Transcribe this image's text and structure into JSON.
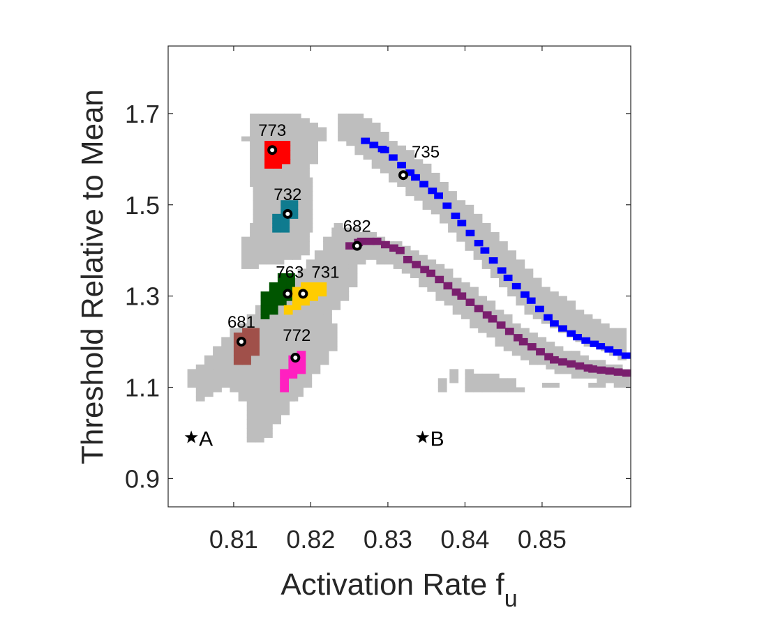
{
  "chart_data": {
    "type": "heatmap",
    "xlabel": "Activation Rate f",
    "xlabel_sub": "u",
    "ylabel": "Threshold Relative to Mean",
    "xlim": [
      0.8015,
      0.8615
    ],
    "ylim": [
      0.838,
      1.848
    ],
    "xticks": [
      "0.81",
      "0.82",
      "0.83",
      "0.84",
      "0.85"
    ],
    "yticks": [
      "0.9",
      "1.1",
      "1.3",
      "1.5",
      "1.7"
    ],
    "colors": {
      "region": "#bebebe",
      "red": "#ff0000",
      "teal": "#0f7b8f",
      "darkgreen": "#005500",
      "gold": "#ffcc00",
      "brown": "#a0504a",
      "pink": "#ff20c0",
      "purple": "#7a1f6e",
      "blue": "#0000ff"
    },
    "labeled_points": [
      {
        "label": "773",
        "x": 0.815,
        "y": 1.62
      },
      {
        "label": "732",
        "x": 0.817,
        "y": 1.48
      },
      {
        "label": "735",
        "x": 0.832,
        "y": 1.565
      },
      {
        "label": "682",
        "x": 0.826,
        "y": 1.41
      },
      {
        "label": "763",
        "x": 0.817,
        "y": 1.305
      },
      {
        "label": "731",
        "x": 0.819,
        "y": 1.305
      },
      {
        "label": "681",
        "x": 0.811,
        "y": 1.2
      },
      {
        "label": "772",
        "x": 0.818,
        "y": 1.165
      }
    ],
    "star_markers": [
      {
        "label": "A",
        "x": 0.8045,
        "y": 0.99
      },
      {
        "label": "B",
        "x": 0.8345,
        "y": 0.99
      }
    ]
  }
}
